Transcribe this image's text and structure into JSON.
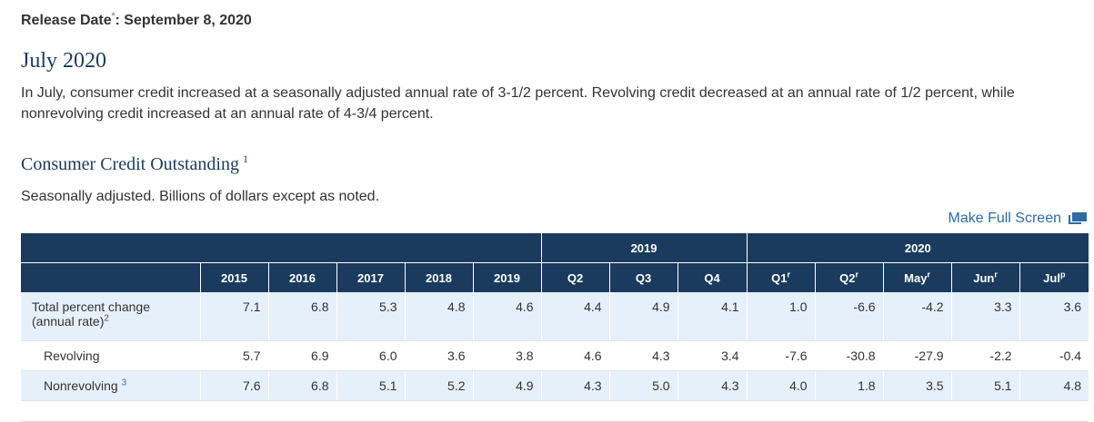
{
  "release": {
    "label": "Release Date",
    "marker": "*",
    "date": ": September 8, 2020"
  },
  "month_title": "July 2020",
  "summary": "In July, consumer credit increased at a seasonally adjusted annual rate of 3-1/2 percent. Revolving credit decreased at an annual rate of 1/2 percent, while nonrevolving credit increased at an annual rate of 4-3/4 percent.",
  "section": {
    "title": "Consumer Credit Outstanding",
    "footnote": "1",
    "subtitle": "Seasonally adjusted. Billions of dollars except as noted."
  },
  "fullscreen_label": "Make Full Screen",
  "table": {
    "group_2019": "2019",
    "group_2020": "2020",
    "columns": [
      {
        "label": "2015",
        "sup": ""
      },
      {
        "label": "2016",
        "sup": ""
      },
      {
        "label": "2017",
        "sup": ""
      },
      {
        "label": "2018",
        "sup": ""
      },
      {
        "label": "2019",
        "sup": ""
      },
      {
        "label": "Q2",
        "sup": ""
      },
      {
        "label": "Q3",
        "sup": ""
      },
      {
        "label": "Q4",
        "sup": ""
      },
      {
        "label": "Q1",
        "sup": "r"
      },
      {
        "label": "Q2",
        "sup": "r"
      },
      {
        "label": "May",
        "sup": "r"
      },
      {
        "label": "Jun",
        "sup": "r"
      },
      {
        "label": "Jul",
        "sup": "p"
      }
    ],
    "rows": [
      {
        "label_line1": "Total percent change",
        "label_line2": "(annual rate)",
        "footnote": "2",
        "values": [
          "7.1",
          "6.8",
          "5.3",
          "4.8",
          "4.6",
          "4.4",
          "4.9",
          "4.1",
          "1.0",
          "-6.6",
          "-4.2",
          "3.3",
          "3.6"
        ]
      },
      {
        "label": "Revolving",
        "values": [
          "5.7",
          "6.9",
          "6.0",
          "3.6",
          "3.8",
          "4.6",
          "4.3",
          "3.4",
          "-7.6",
          "-30.8",
          "-27.9",
          "-2.2",
          "-0.4"
        ]
      },
      {
        "label": "Nonrevolving",
        "footnote": "3",
        "values": [
          "7.6",
          "6.8",
          "5.1",
          "5.2",
          "4.9",
          "4.3",
          "5.0",
          "4.3",
          "4.0",
          "1.8",
          "3.5",
          "5.1",
          "4.8"
        ]
      }
    ]
  }
}
